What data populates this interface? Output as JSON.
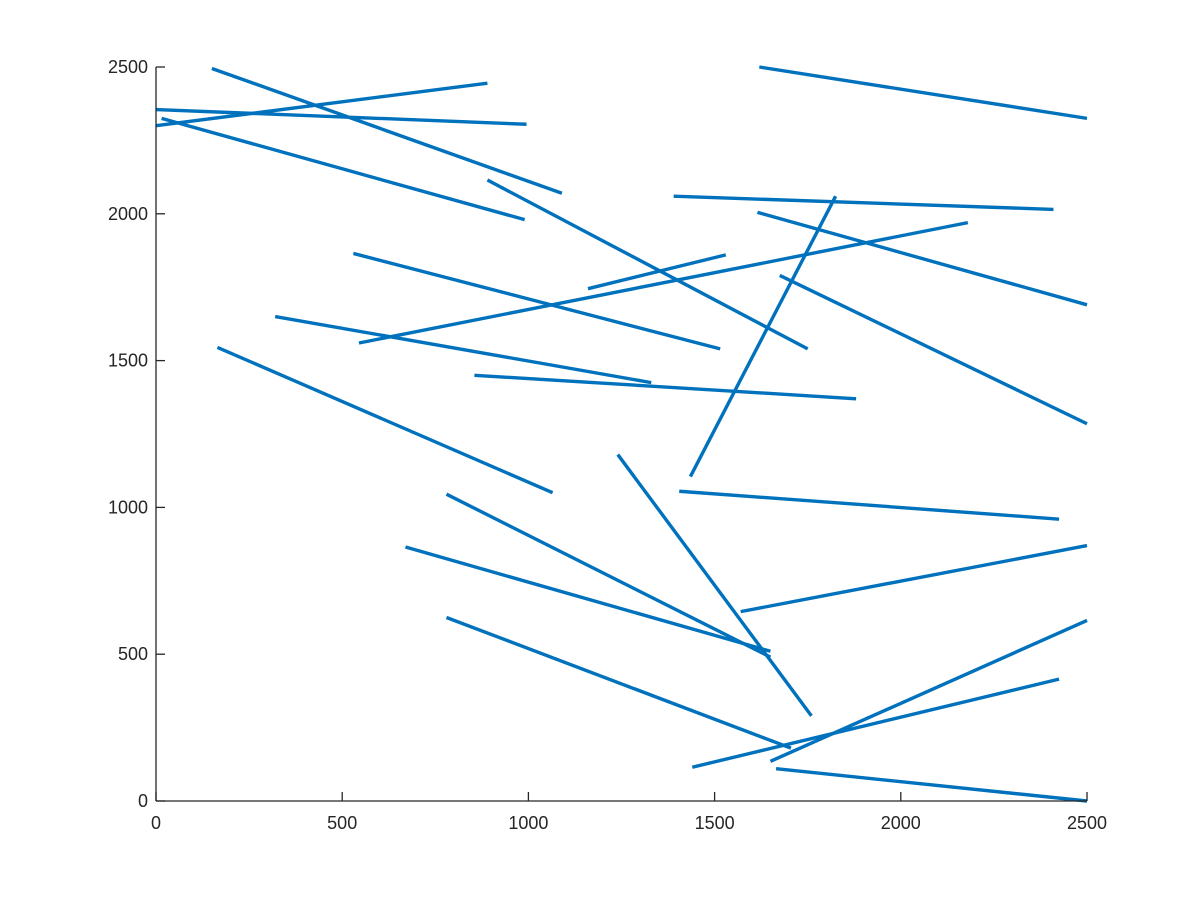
{
  "chart_data": {
    "type": "line",
    "title": "",
    "xlabel": "",
    "ylabel": "",
    "xlim": [
      0,
      2500
    ],
    "ylim": [
      0,
      2500
    ],
    "x_ticks": [
      0,
      500,
      1000,
      1500,
      2000,
      2500
    ],
    "y_ticks": [
      0,
      500,
      1000,
      1500,
      2000,
      2500
    ],
    "x_tick_labels": [
      "0",
      "500",
      "1000",
      "1500",
      "2000",
      "2500"
    ],
    "y_tick_labels": [
      "0",
      "500",
      "1000",
      "1500",
      "2000",
      "2500"
    ],
    "grid": false,
    "box": false,
    "legend": "none",
    "line_color": "#0072BD",
    "segments": [
      {
        "x": [
          150,
          1090
        ],
        "y": [
          2495,
          2070
        ]
      },
      {
        "x": [
          0,
          890
        ],
        "y": [
          2300,
          2445
        ]
      },
      {
        "x": [
          0,
          995
        ],
        "y": [
          2355,
          2305
        ]
      },
      {
        "x": [
          15,
          990
        ],
        "y": [
          2325,
          1980
        ]
      },
      {
        "x": [
          1620,
          2500
        ],
        "y": [
          2500,
          2325
        ]
      },
      {
        "x": [
          890,
          1750
        ],
        "y": [
          2115,
          1540
        ]
      },
      {
        "x": [
          1390,
          2410
        ],
        "y": [
          2060,
          2015
        ]
      },
      {
        "x": [
          1615,
          2500
        ],
        "y": [
          2005,
          1690
        ]
      },
      {
        "x": [
          530,
          1515
        ],
        "y": [
          1865,
          1540
        ]
      },
      {
        "x": [
          545,
          2180
        ],
        "y": [
          1560,
          1970
        ]
      },
      {
        "x": [
          1160,
          1530
        ],
        "y": [
          1745,
          1860
        ]
      },
      {
        "x": [
          1435,
          1825
        ],
        "y": [
          1105,
          2060
        ]
      },
      {
        "x": [
          1675,
          2500
        ],
        "y": [
          1790,
          1285
        ]
      },
      {
        "x": [
          320,
          1330
        ],
        "y": [
          1650,
          1425
        ]
      },
      {
        "x": [
          855,
          1880
        ],
        "y": [
          1450,
          1370
        ]
      },
      {
        "x": [
          165,
          1065
        ],
        "y": [
          1545,
          1050
        ]
      },
      {
        "x": [
          1405,
          2425
        ],
        "y": [
          1055,
          960
        ]
      },
      {
        "x": [
          1240,
          1760
        ],
        "y": [
          1180,
          290
        ]
      },
      {
        "x": [
          780,
          1650
        ],
        "y": [
          1045,
          490
        ]
      },
      {
        "x": [
          670,
          1650
        ],
        "y": [
          865,
          510
        ]
      },
      {
        "x": [
          1570,
          2500
        ],
        "y": [
          645,
          870
        ]
      },
      {
        "x": [
          780,
          1705
        ],
        "y": [
          625,
          180
        ]
      },
      {
        "x": [
          1650,
          2500
        ],
        "y": [
          135,
          615
        ]
      },
      {
        "x": [
          1440,
          2425
        ],
        "y": [
          115,
          415
        ]
      },
      {
        "x": [
          1665,
          2500
        ],
        "y": [
          110,
          0
        ]
      }
    ]
  }
}
